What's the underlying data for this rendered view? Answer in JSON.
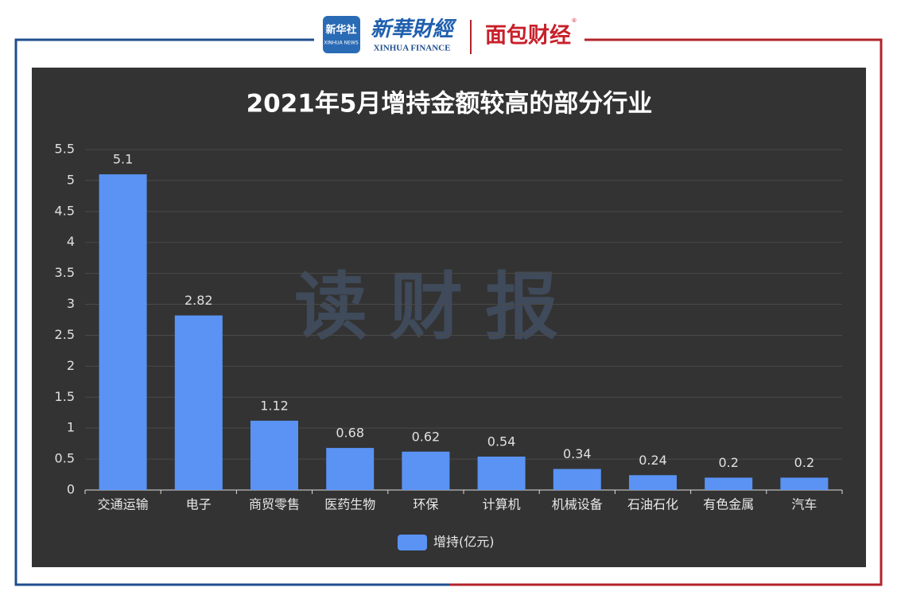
{
  "header": {
    "xinhua_news_cn": "新华社",
    "xinhua_news_en": "XINHUA NEWS",
    "xinhua_finance_cn": "新華財經",
    "xinhua_finance_en": "XINHUA FINANCE",
    "mianbao": "面包财经",
    "registered": "®"
  },
  "watermark": "读财报",
  "chart_data": {
    "type": "bar",
    "title": "2021年5月增持金额较高的部分行业",
    "categories": [
      "交通运输",
      "电子",
      "商贸零售",
      "医药生物",
      "环保",
      "计算机",
      "机械设备",
      "石油石化",
      "有色金属",
      "汽车"
    ],
    "series": [
      {
        "name": "增持(亿元)",
        "color": "#5a93f3",
        "values": [
          5.1,
          2.82,
          1.12,
          0.68,
          0.62,
          0.54,
          0.34,
          0.24,
          0.2,
          0.2
        ]
      }
    ],
    "ylim": [
      0,
      5.5
    ],
    "yticks": [
      0,
      0.5,
      1,
      1.5,
      2,
      2.5,
      3,
      3.5,
      4,
      4.5,
      5,
      5.5
    ],
    "grid": true,
    "legend": "bottom",
    "value_labels_shown": true
  }
}
